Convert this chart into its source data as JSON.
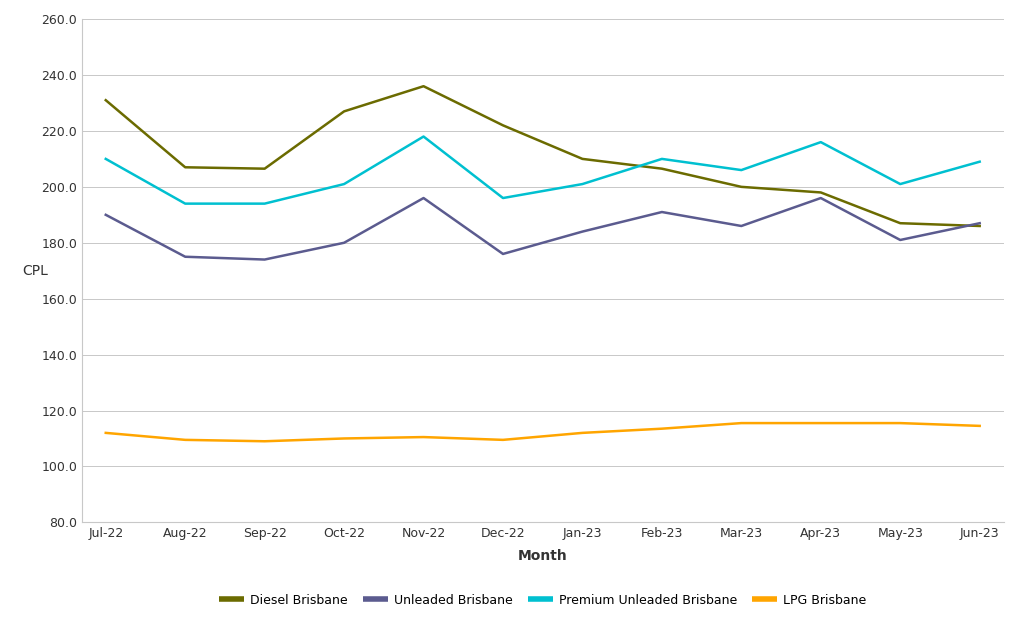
{
  "months": [
    "Jul-22",
    "Aug-22",
    "Sep-22",
    "Oct-22",
    "Nov-22",
    "Dec-22",
    "Jan-23",
    "Feb-23",
    "Mar-23",
    "Apr-23",
    "May-23",
    "Jun-23"
  ],
  "diesel": [
    231.0,
    207.0,
    206.5,
    227.0,
    236.0,
    222.0,
    210.0,
    206.5,
    200.0,
    198.0,
    187.0,
    186.0
  ],
  "unleaded": [
    190.0,
    175.0,
    174.0,
    180.0,
    196.0,
    176.0,
    184.0,
    191.0,
    186.0,
    196.0,
    181.0,
    187.0
  ],
  "premium_unleaded": [
    210.0,
    194.0,
    194.0,
    201.0,
    218.0,
    196.0,
    201.0,
    210.0,
    206.0,
    216.0,
    201.0,
    209.0
  ],
  "lpg": [
    112.0,
    109.5,
    109.0,
    110.0,
    110.5,
    109.5,
    112.0,
    113.5,
    115.5,
    115.5,
    115.5,
    114.5
  ],
  "diesel_color": "#6b6b00",
  "unleaded_color": "#5b5b8f",
  "premium_color": "#00c0d0",
  "lpg_color": "#ffa500",
  "ylabel": "CPL",
  "xlabel": "Month",
  "ylim_min": 80.0,
  "ylim_max": 260.0,
  "ytick_step": 20.0,
  "background_color": "#ffffff",
  "grid_color": "#c8c8c8",
  "legend_labels": [
    "Diesel Brisbane",
    "Unleaded Brisbane",
    "Premium Unleaded Brisbane",
    "LPG Brisbane"
  ]
}
